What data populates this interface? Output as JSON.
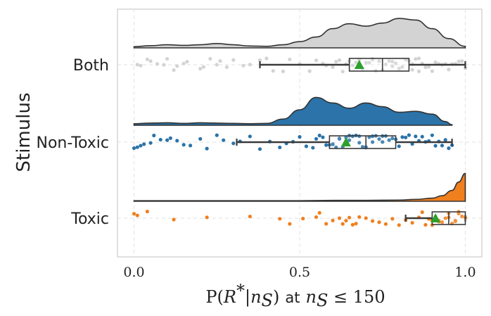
{
  "chart_data": {
    "type": "raincloud",
    "ylabel": "Stimulus",
    "xlabel": {
      "left": "P(",
      "r": "R",
      "star": "*",
      "bar": "|",
      "n": "n",
      "sub": "S",
      "close": ")",
      "at": "at",
      "n2": "n",
      "sub2": "S",
      "rel": " ≤ 150"
    },
    "xlim": [
      -0.05,
      1.05
    ],
    "xticks": [
      {
        "value": 0.0,
        "label": "0.0"
      },
      {
        "value": 0.5,
        "label": "0.5"
      },
      {
        "value": 1.0,
        "label": "1.0"
      }
    ],
    "grid": true,
    "categories": [
      {
        "name": "Both",
        "color": "#d3d3d3",
        "edge": "#c8c8c8",
        "box": {
          "whisker_low": 0.38,
          "q1": 0.65,
          "median": 0.75,
          "q3": 0.83,
          "whisker_high": 1.0,
          "mean": 0.68
        },
        "density": [
          {
            "x": 0.0,
            "d": 0.04
          },
          {
            "x": 0.05,
            "d": 0.07
          },
          {
            "x": 0.1,
            "d": 0.1
          },
          {
            "x": 0.15,
            "d": 0.08
          },
          {
            "x": 0.2,
            "d": 0.1
          },
          {
            "x": 0.25,
            "d": 0.14
          },
          {
            "x": 0.3,
            "d": 0.1
          },
          {
            "x": 0.35,
            "d": 0.06
          },
          {
            "x": 0.4,
            "d": 0.05
          },
          {
            "x": 0.45,
            "d": 0.1
          },
          {
            "x": 0.5,
            "d": 0.2
          },
          {
            "x": 0.55,
            "d": 0.35
          },
          {
            "x": 0.6,
            "d": 0.62
          },
          {
            "x": 0.65,
            "d": 0.78
          },
          {
            "x": 0.7,
            "d": 0.7
          },
          {
            "x": 0.75,
            "d": 0.8
          },
          {
            "x": 0.8,
            "d": 0.95
          },
          {
            "x": 0.85,
            "d": 0.9
          },
          {
            "x": 0.9,
            "d": 0.62
          },
          {
            "x": 0.95,
            "d": 0.3
          },
          {
            "x": 1.0,
            "d": 0.05
          }
        ],
        "points": [
          0.01,
          0.02,
          0.04,
          0.05,
          0.07,
          0.09,
          0.1,
          0.12,
          0.13,
          0.15,
          0.16,
          0.2,
          0.21,
          0.23,
          0.25,
          0.26,
          0.28,
          0.3,
          0.33,
          0.35,
          0.38,
          0.4,
          0.42,
          0.45,
          0.47,
          0.5,
          0.53,
          0.55,
          0.57,
          0.58,
          0.6,
          0.61,
          0.62,
          0.63,
          0.64,
          0.65,
          0.66,
          0.67,
          0.68,
          0.69,
          0.7,
          0.71,
          0.72,
          0.73,
          0.74,
          0.75,
          0.76,
          0.77,
          0.78,
          0.79,
          0.8,
          0.81,
          0.82,
          0.83,
          0.84,
          0.85,
          0.86,
          0.87,
          0.88,
          0.89,
          0.9,
          0.91,
          0.92,
          0.93,
          0.94,
          0.95,
          0.96,
          0.97,
          0.98,
          0.99,
          1.0,
          0.72,
          0.78,
          0.8,
          0.84,
          0.86
        ]
      },
      {
        "name": "Non-Toxic",
        "color": "#2b73a9",
        "edge": "#1f5f8f",
        "box": {
          "whisker_low": 0.31,
          "q1": 0.59,
          "median": 0.7,
          "q3": 0.79,
          "whisker_high": 0.96,
          "mean": 0.64
        },
        "density": [
          {
            "x": 0.0,
            "d": 0.05
          },
          {
            "x": 0.05,
            "d": 0.07
          },
          {
            "x": 0.1,
            "d": 0.08
          },
          {
            "x": 0.15,
            "d": 0.06
          },
          {
            "x": 0.2,
            "d": 0.08
          },
          {
            "x": 0.25,
            "d": 0.07
          },
          {
            "x": 0.3,
            "d": 0.06
          },
          {
            "x": 0.35,
            "d": 0.05
          },
          {
            "x": 0.4,
            "d": 0.06
          },
          {
            "x": 0.45,
            "d": 0.2
          },
          {
            "x": 0.5,
            "d": 0.5
          },
          {
            "x": 0.55,
            "d": 0.9
          },
          {
            "x": 0.6,
            "d": 0.72
          },
          {
            "x": 0.65,
            "d": 0.55
          },
          {
            "x": 0.7,
            "d": 0.72
          },
          {
            "x": 0.75,
            "d": 0.6
          },
          {
            "x": 0.8,
            "d": 0.42
          },
          {
            "x": 0.85,
            "d": 0.45
          },
          {
            "x": 0.9,
            "d": 0.36
          },
          {
            "x": 0.94,
            "d": 0.12
          },
          {
            "x": 0.96,
            "d": 0.02
          }
        ],
        "points": [
          0.0,
          0.01,
          0.02,
          0.03,
          0.05,
          0.06,
          0.08,
          0.1,
          0.11,
          0.13,
          0.15,
          0.17,
          0.2,
          0.22,
          0.25,
          0.27,
          0.3,
          0.32,
          0.35,
          0.38,
          0.41,
          0.44,
          0.46,
          0.48,
          0.5,
          0.52,
          0.54,
          0.55,
          0.56,
          0.57,
          0.58,
          0.59,
          0.6,
          0.61,
          0.62,
          0.63,
          0.64,
          0.65,
          0.66,
          0.67,
          0.68,
          0.69,
          0.7,
          0.71,
          0.72,
          0.73,
          0.74,
          0.75,
          0.76,
          0.77,
          0.78,
          0.79,
          0.8,
          0.81,
          0.82,
          0.83,
          0.84,
          0.85,
          0.86,
          0.87,
          0.88,
          0.89,
          0.9,
          0.91,
          0.92,
          0.93,
          0.94,
          0.95,
          0.96,
          0.6,
          0.62,
          0.65,
          0.68,
          0.7,
          0.72,
          0.75
        ]
      },
      {
        "name": "Toxic",
        "color": "#f07f1e",
        "edge": "#d86d0e",
        "box": {
          "whisker_low": 0.82,
          "q1": 0.9,
          "median": 0.95,
          "q3": 1.0,
          "whisker_high": 1.0,
          "mean": 0.91
        },
        "density": [
          {
            "x": 0.0,
            "d": 0.02
          },
          {
            "x": 0.1,
            "d": 0.02
          },
          {
            "x": 0.2,
            "d": 0.02
          },
          {
            "x": 0.3,
            "d": 0.02
          },
          {
            "x": 0.4,
            "d": 0.02
          },
          {
            "x": 0.5,
            "d": 0.02
          },
          {
            "x": 0.6,
            "d": 0.03
          },
          {
            "x": 0.7,
            "d": 0.03
          },
          {
            "x": 0.8,
            "d": 0.04
          },
          {
            "x": 0.85,
            "d": 0.06
          },
          {
            "x": 0.9,
            "d": 0.1
          },
          {
            "x": 0.93,
            "d": 0.18
          },
          {
            "x": 0.96,
            "d": 0.35
          },
          {
            "x": 0.98,
            "d": 0.62
          },
          {
            "x": 1.0,
            "d": 0.9
          }
        ],
        "points": [
          0.0,
          0.01,
          0.04,
          0.12,
          0.22,
          0.35,
          0.44,
          0.47,
          0.51,
          0.55,
          0.56,
          0.58,
          0.6,
          0.62,
          0.63,
          0.64,
          0.65,
          0.66,
          0.67,
          0.68,
          0.7,
          0.72,
          0.74,
          0.76,
          0.78,
          0.8,
          0.82,
          0.84,
          0.86,
          0.87,
          0.88,
          0.89,
          0.9,
          0.91,
          0.92,
          0.93,
          0.94,
          0.95,
          0.96,
          0.97,
          0.98,
          0.99,
          1.0,
          0.9,
          0.92,
          0.95,
          0.97,
          0.98
        ]
      }
    ]
  }
}
